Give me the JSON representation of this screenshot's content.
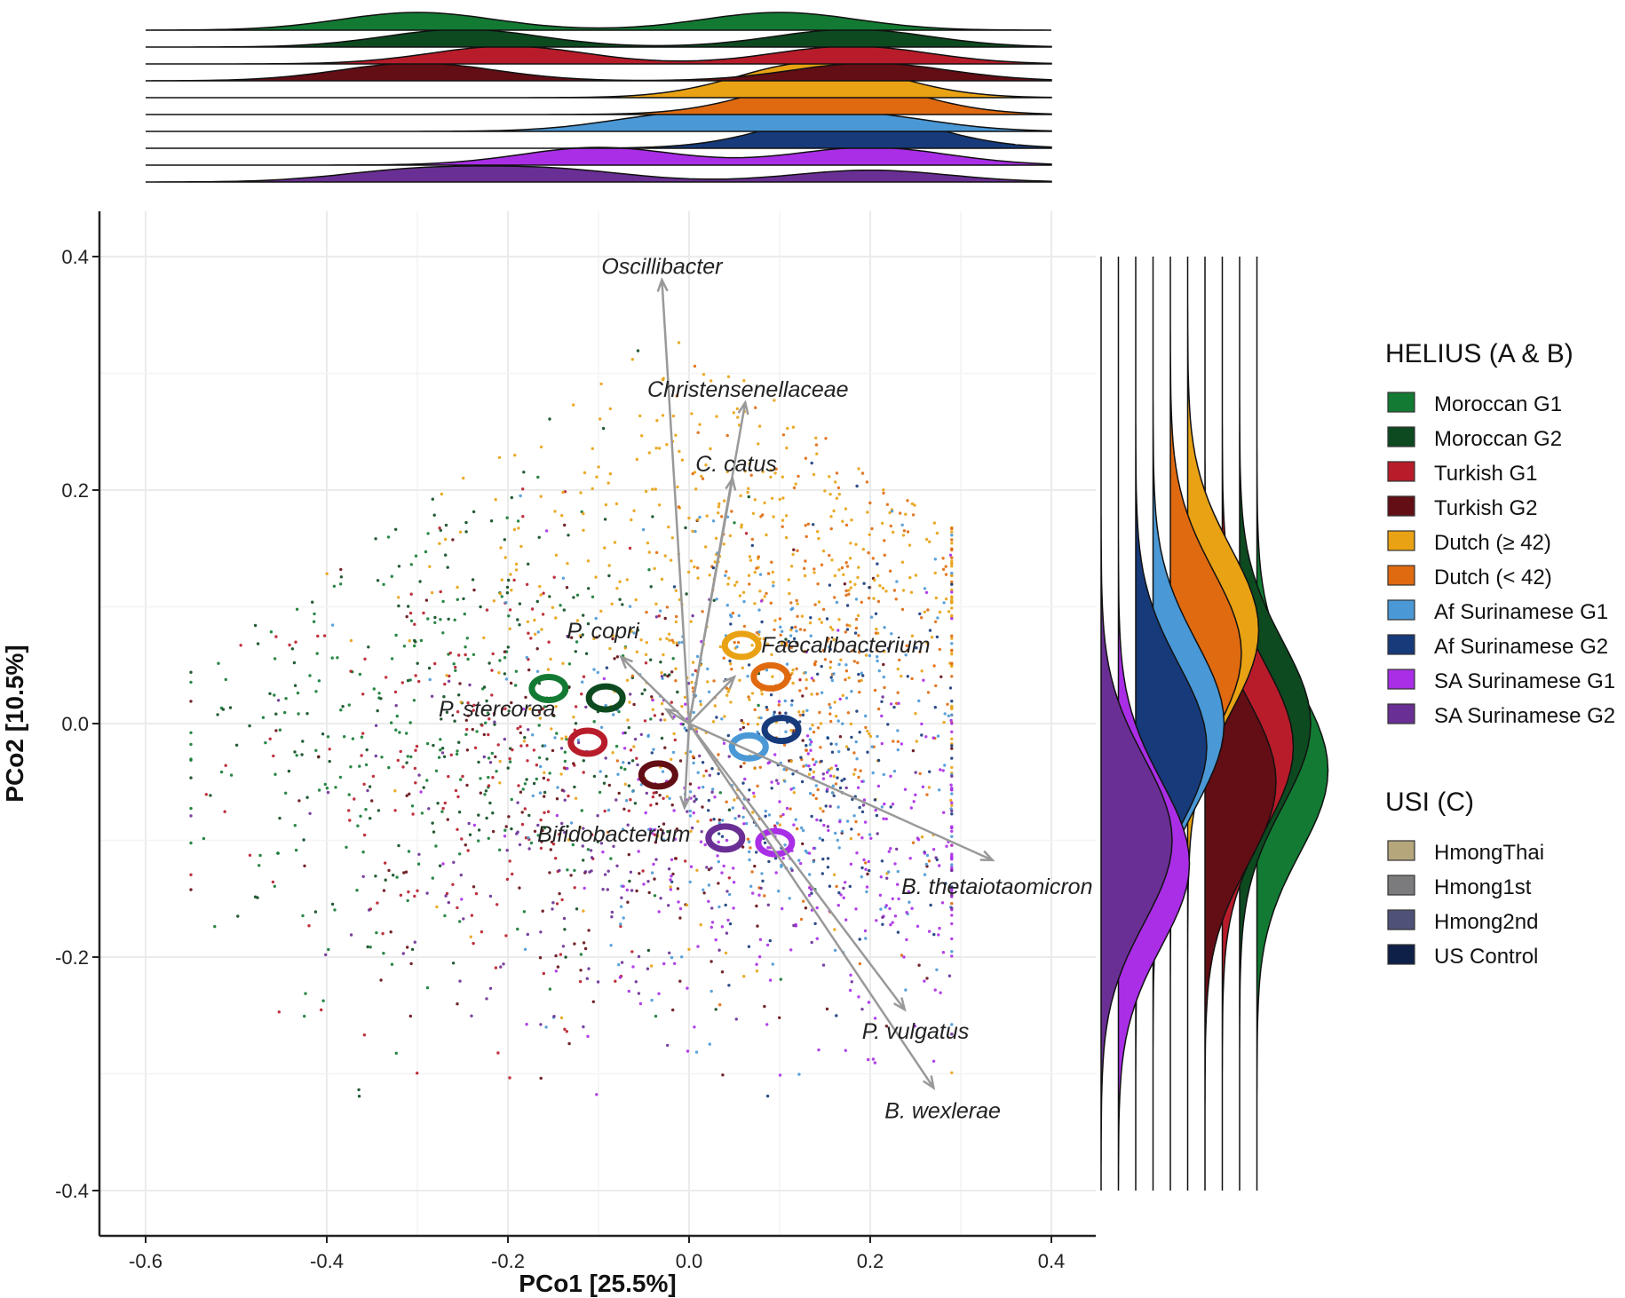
{
  "chart_data": {
    "type": "scatter",
    "subtype": "PCoA biplot with marginal density ridges",
    "xlabel": "PCo1 [25.5%]",
    "ylabel": "PCo2 [10.5%]",
    "xlim": [
      -0.65,
      0.45
    ],
    "ylim": [
      -0.44,
      0.43
    ],
    "x_ticks": [
      -0.6,
      -0.4,
      -0.2,
      0.0,
      0.2,
      0.4
    ],
    "x_tick_labels": [
      "-0.6",
      "-0.4",
      "-0.2",
      "0.0",
      "0.2",
      "0.4"
    ],
    "y_ticks": [
      -0.4,
      -0.2,
      0.0,
      0.2,
      0.4
    ],
    "y_tick_labels": [
      "-0.4",
      "-0.2",
      "0.0",
      "0.2",
      "0.4"
    ],
    "grid": true,
    "groups": [
      {
        "name": "Moroccan G1",
        "color": "#137a33",
        "centroid": [
          -0.155,
          0.03
        ]
      },
      {
        "name": "Moroccan G2",
        "color": "#0d4a20",
        "centroid": [
          -0.092,
          0.022
        ]
      },
      {
        "name": "Turkish G1",
        "color": "#b81c2a",
        "centroid": [
          -0.112,
          -0.016
        ]
      },
      {
        "name": "Turkish G2",
        "color": "#630d14",
        "centroid": [
          -0.034,
          -0.044
        ]
      },
      {
        "name": "Dutch (≥ 42)",
        "color": "#e8a214",
        "centroid": [
          0.058,
          0.067
        ]
      },
      {
        "name": "Dutch (< 42)",
        "color": "#e06a10",
        "centroid": [
          0.09,
          0.04
        ]
      },
      {
        "name": "Af Surinamese G1",
        "color": "#4a98d6",
        "centroid": [
          0.066,
          -0.02
        ]
      },
      {
        "name": "Af Surinamese G2",
        "color": "#173a7a",
        "centroid": [
          0.102,
          -0.005
        ]
      },
      {
        "name": "SA Surinamese G1",
        "color": "#a92ee6",
        "centroid": [
          0.095,
          -0.102
        ]
      },
      {
        "name": "SA Surinamese G2",
        "color": "#6a2f94",
        "centroid": [
          0.04,
          -0.098
        ]
      }
    ],
    "loadings": [
      {
        "taxon": "Oscillibacter",
        "x": -0.03,
        "y": 0.38,
        "label_x": -0.03,
        "label_y": 0.385
      },
      {
        "taxon": "Christensenellaceae",
        "x": 0.062,
        "y": 0.275,
        "label_x": 0.065,
        "label_y": 0.28
      },
      {
        "taxon": "C. catus",
        "x": 0.048,
        "y": 0.21,
        "label_x": 0.052,
        "label_y": 0.216
      },
      {
        "taxon": "P. copri",
        "x": -0.075,
        "y": 0.057,
        "label_x": -0.095,
        "label_y": 0.073
      },
      {
        "taxon": "Faecalibacterium",
        "x": 0.05,
        "y": 0.04,
        "label_x": 0.173,
        "label_y": 0.061
      },
      {
        "taxon": "P. stercorea",
        "x": -0.025,
        "y": 0.012,
        "label_x": -0.212,
        "label_y": 0.006
      },
      {
        "taxon": "Bifidobacterium",
        "x": -0.005,
        "y": -0.072,
        "label_x": -0.083,
        "label_y": -0.101
      },
      {
        "taxon": "B. thetaiotaomicron",
        "x": 0.335,
        "y": -0.117,
        "label_x": 0.34,
        "label_y": -0.146
      },
      {
        "taxon": "P. vulgatus",
        "x": 0.238,
        "y": -0.245,
        "label_x": 0.25,
        "label_y": -0.27
      },
      {
        "taxon": "B. wexlerae",
        "x": 0.27,
        "y": -0.312,
        "label_x": 0.28,
        "label_y": -0.338
      }
    ],
    "top_marginal_density_peaks": {
      "Moroccan G1": [
        -0.3,
        0.1
      ],
      "Moroccan G2": [
        -0.25,
        0.18
      ],
      "Turkish G1": [
        -0.2,
        0.18
      ],
      "Turkish G2": [
        -0.3,
        0.2
      ],
      "Dutch (≥ 42)": [
        0.14
      ],
      "Dutch (< 42)": [
        0.16
      ],
      "Af Surinamese G1": [
        0.0,
        0.18
      ],
      "Af Surinamese G2": [
        0.18
      ],
      "SA Surinamese G1": [
        -0.1,
        0.2
      ],
      "SA Surinamese G2": [
        -0.3,
        -0.15,
        0.2
      ]
    },
    "right_marginal_density_peaks": {
      "SA Surinamese G2": [
        -0.1
      ],
      "SA Surinamese G1": [
        -0.12
      ],
      "Af Surinamese G2": [
        -0.02
      ],
      "Af Surinamese G1": [
        0.0
      ],
      "Dutch (< 42)": [
        0.06
      ],
      "Dutch (≥ 42)": [
        0.08
      ],
      "Turkish G2": [
        -0.05
      ],
      "Turkish G1": [
        -0.02
      ],
      "Moroccan G2": [
        0.0
      ],
      "Moroccan G1": [
        -0.04
      ]
    },
    "legends": [
      {
        "title": "HELIUS (A & B)",
        "entries": [
          {
            "label": "Moroccan G1",
            "color": "#137a33"
          },
          {
            "label": "Moroccan G2",
            "color": "#0d4a20"
          },
          {
            "label": "Turkish G1",
            "color": "#b81c2a"
          },
          {
            "label": "Turkish G2",
            "color": "#630d14"
          },
          {
            "label": "Dutch (≥ 42)",
            "color": "#e8a214"
          },
          {
            "label": "Dutch (< 42)",
            "color": "#e06a10"
          },
          {
            "label": "Af Surinamese G1",
            "color": "#4a98d6"
          },
          {
            "label": "Af Surinamese G2",
            "color": "#173a7a"
          },
          {
            "label": "SA Surinamese G1",
            "color": "#a92ee6"
          },
          {
            "label": "SA Surinamese G2",
            "color": "#6a2f94"
          }
        ]
      },
      {
        "title": "USI (C)",
        "entries": [
          {
            "label": "HmongThai",
            "color": "#b5a67c"
          },
          {
            "label": "Hmong1st",
            "color": "#7b7b7e"
          },
          {
            "label": "Hmong2nd",
            "color": "#4f5278"
          },
          {
            "label": "US Control",
            "color": "#0e1f48"
          }
        ]
      }
    ],
    "legend_position": "right"
  }
}
